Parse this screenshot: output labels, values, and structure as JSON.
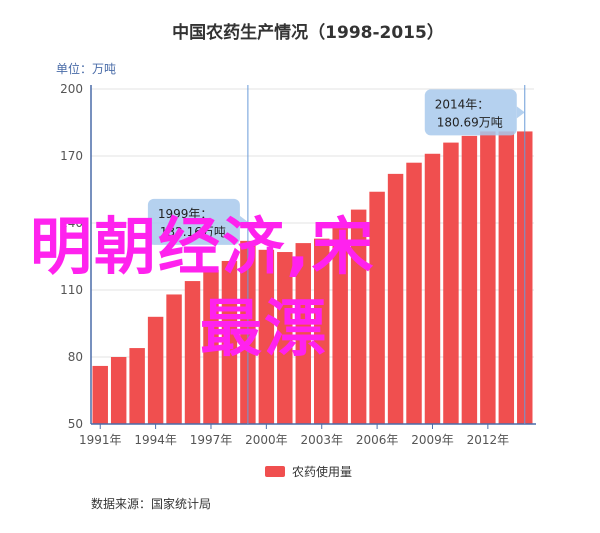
{
  "chart_data": {
    "type": "bar",
    "title": "中国农药生产情况（1998-2015）",
    "unit_label": "单位：万吨",
    "source": "数据来源：国家统计局",
    "ylim": [
      50,
      200
    ],
    "yticks": [
      50,
      80,
      110,
      140,
      170,
      200
    ],
    "xtick_labels": [
      "1991年",
      "1994年",
      "1997年",
      "2000年",
      "2003年",
      "2006年",
      "2009年",
      "2012年"
    ],
    "xtick_years": [
      1991,
      1994,
      1997,
      2000,
      2003,
      2006,
      2009,
      2012
    ],
    "series": [
      {
        "name": "农药使用量",
        "color": "#f04f4f",
        "x": [
          1991,
          1992,
          1993,
          1994,
          1995,
          1996,
          1997,
          1998,
          1999,
          2000,
          2001,
          2002,
          2003,
          2004,
          2005,
          2006,
          2007,
          2008,
          2009,
          2010,
          2011,
          2012,
          2013,
          2014
        ],
        "values": [
          76,
          80,
          84,
          98,
          108,
          114,
          119,
          123,
          132,
          128,
          127,
          131,
          133,
          139,
          146,
          154,
          162,
          167,
          171,
          176,
          179,
          181,
          181,
          181
        ]
      }
    ],
    "tooltips": [
      {
        "line1": "1999年：",
        "line2": "132.16万吨",
        "x": 1999
      },
      {
        "line1": "2014年：",
        "line2": "180.69万吨",
        "x": 2014
      }
    ],
    "legend": "bottom-center",
    "grid": "horizontal"
  },
  "overlay": {
    "line1": "明朝经济,宋",
    "line2": "最漂"
  },
  "colors": {
    "bar": "#f04f4f",
    "overlay_text": "#ff22ee",
    "crosshair": "#6a9bd8"
  }
}
